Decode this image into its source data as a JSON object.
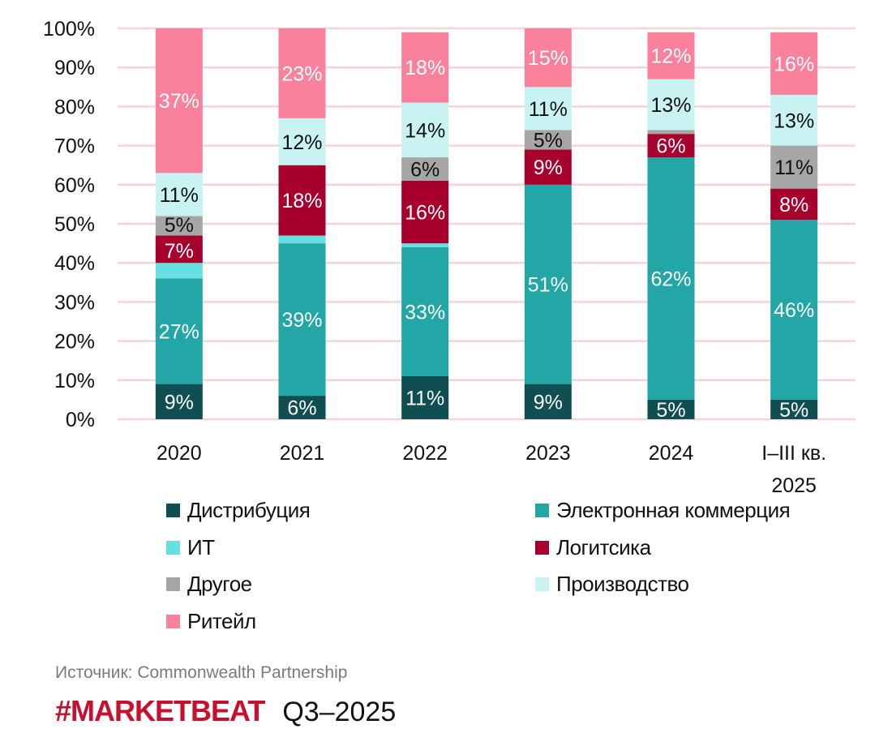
{
  "chart_data": {
    "type": "bar",
    "stacked": true,
    "percent": true,
    "categories": [
      "2020",
      "2021",
      "2022",
      "2023",
      "2024",
      "I–III кв.\n2025"
    ],
    "ylim": [
      0,
      100
    ],
    "yticks": [
      "0%",
      "10%",
      "20%",
      "30%",
      "40%",
      "50%",
      "60%",
      "70%",
      "80%",
      "90%",
      "100%"
    ],
    "grid": true,
    "legend_placement": "bottom",
    "series": [
      {
        "name": "Дистрибуция",
        "color": "#0f4f52",
        "label_color": "#ffffff",
        "values": [
          9,
          6,
          11,
          9,
          5,
          5
        ]
      },
      {
        "name": "Электронная коммерция",
        "color": "#22a6a6",
        "label_color": "#ffffff",
        "values": [
          27,
          39,
          33,
          51,
          62,
          46
        ]
      },
      {
        "name": "ИТ",
        "color": "#66e0e0",
        "label_color": "#111111",
        "values": [
          4,
          2,
          1,
          0,
          0,
          0
        ]
      },
      {
        "name": "Логитсика",
        "color": "#a8002d",
        "label_color": "#ffffff",
        "values": [
          7,
          18,
          16,
          9,
          6,
          8
        ]
      },
      {
        "name": "Другое",
        "color": "#a6a6a6",
        "label_color": "#111111",
        "values": [
          5,
          0,
          6,
          5,
          1,
          11
        ]
      },
      {
        "name": "Производство",
        "color": "#c9f2f2",
        "label_color": "#111111",
        "values": [
          11,
          12,
          14,
          11,
          13,
          13
        ]
      },
      {
        "name": "Ритейл",
        "color": "#f9819b",
        "label_color": "#ffffff",
        "values": [
          37,
          23,
          18,
          15,
          12,
          16
        ]
      }
    ]
  },
  "footer": {
    "source": "Источник: Commonwealth Partnership",
    "brand": "#MARKETBEAT",
    "period": "Q3–2025"
  }
}
